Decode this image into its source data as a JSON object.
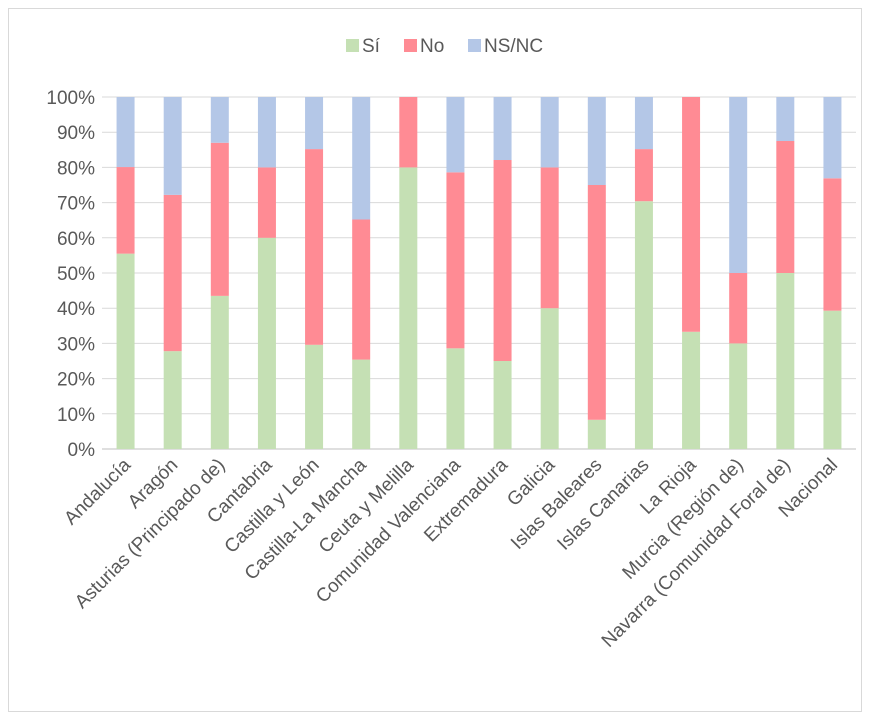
{
  "chart_data": {
    "type": "bar",
    "stacked": true,
    "title": "",
    "xlabel": "",
    "ylabel": "",
    "ylim": [
      0,
      100
    ],
    "y_ticks": [
      "0%",
      "10%",
      "20%",
      "30%",
      "40%",
      "50%",
      "60%",
      "70%",
      "80%",
      "90%",
      "100%"
    ],
    "grid": true,
    "legend_position": "top",
    "categories": [
      "Andalucía",
      "Aragón",
      "Asturias (Principado de)",
      "Cantabria",
      "Castilla y León",
      "Castilla-La Mancha",
      "Ceuta y Melilla",
      "Comunidad Valenciana",
      "Extremadura",
      "Galicia",
      "Islas Baleares",
      "Islas Canarias",
      "La Rioja",
      "Murcia (Región de)",
      "Navarra (Comunidad Foral de)",
      "Nacional"
    ],
    "series": [
      {
        "name": "Sí",
        "color": "#c5e0b4",
        "values": [
          55.5,
          27.8,
          43.5,
          60,
          29.6,
          25.4,
          80,
          28.6,
          25,
          40,
          8.3,
          70.4,
          33.3,
          30,
          50,
          39.3
        ]
      },
      {
        "name": "No",
        "color": "#ff8b94",
        "values": [
          24.6,
          44.4,
          43.5,
          20,
          55.6,
          39.8,
          20,
          50,
          57.1,
          40,
          66.7,
          14.8,
          66.7,
          20,
          37.5,
          37.6
        ]
      },
      {
        "name": "NS/NC",
        "color": "#b4c7e7",
        "values": [
          19.9,
          27.8,
          13,
          20,
          14.8,
          34.8,
          0,
          21.4,
          17.9,
          20,
          25,
          14.8,
          0,
          50,
          12.5,
          23.1
        ]
      }
    ]
  }
}
